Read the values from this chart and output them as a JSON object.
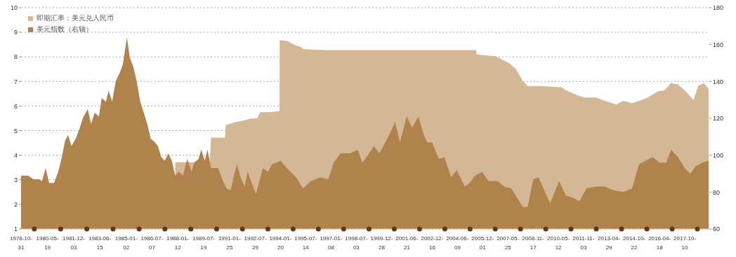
{
  "chart_data": {
    "type": "area",
    "xlim": [
      "1978-10-31",
      "2019-03-20"
    ],
    "xticks": [
      "1978-10-31",
      "1980-05-19",
      "1981-12-03",
      "1983-06-15",
      "1985-01-02",
      "1986-07-07",
      "1988-01-12",
      "1989-07-19",
      "1991-01-25",
      "1992-07-29",
      "1994-01-20",
      "1995-07-14",
      "1997-01-08",
      "1998-07-03",
      "1999-12-28",
      "2001-06-21",
      "2002-12-16",
      "2004-06-09",
      "2005-12-01",
      "2007-05-25",
      "2008-11-17",
      "2010-05-12",
      "2011-11-03",
      "2013-04-29",
      "2014-10-22",
      "2016-04-18",
      "2017-10-10"
    ],
    "ylim": [
      1,
      10
    ],
    "yticks": [
      1,
      2,
      3,
      4,
      5,
      6,
      7,
      8,
      9,
      10
    ],
    "y2lim": [
      60,
      180
    ],
    "y2ticks": [
      60,
      80,
      100,
      120,
      140,
      160,
      180
    ],
    "grid": "y",
    "legend": "top left",
    "series": [
      {
        "name": "即期汇率：美元兑人民币",
        "color": "#d4b896",
        "x": [
          "1987-11-17",
          "1989-11-24",
          "1989-12-23",
          "1990-10-20",
          "1990-11-03",
          "1991-05-18",
          "1991-10-15",
          "1992-04-27",
          "1992-09-10",
          "1992-11-10",
          "1993-06-08",
          "1993-12-20",
          "1993-12-31",
          "1994-01-03",
          "1994-06-13",
          "1994-11-06",
          "1995-04-01",
          "1995-05-16",
          "1995-11-08",
          "1996-11-09",
          "2005-06-21",
          "2005-07-20",
          "2005-07-22",
          "2006-04-09",
          "2006-09-02",
          "2007-06-22",
          "2007-11-15",
          "2008-04-11",
          "2008-07-22",
          "2009-05-11",
          "2010-07-23",
          "2010-10-19",
          "2011-06-24",
          "2011-11-17",
          "2012-07-24",
          "2013-01-31",
          "2013-10-06",
          "2014-03-03",
          "2014-09-09",
          "2015-02-02",
          "2015-08-10",
          "2016-03-03",
          "2016-07-27",
          "2016-12-20",
          "2017-05-16",
          "2017-10-09",
          "2018-04-16",
          "2018-07-27",
          "2018-11-20",
          "2019-03-04"
        ],
        "values": [
          3.71,
          3.71,
          4.72,
          4.72,
          5.22,
          5.34,
          5.39,
          5.49,
          5.5,
          5.75,
          5.75,
          5.8,
          5.8,
          8.68,
          8.65,
          8.5,
          8.4,
          8.32,
          8.3,
          8.28,
          8.28,
          8.28,
          8.1,
          8.05,
          8.03,
          7.74,
          7.5,
          7.02,
          6.81,
          6.81,
          6.76,
          6.64,
          6.44,
          6.35,
          6.35,
          6.21,
          6.06,
          6.21,
          6.11,
          6.21,
          6.35,
          6.59,
          6.64,
          6.93,
          6.88,
          6.64,
          6.25,
          6.83,
          6.93,
          6.71
        ]
      },
      {
        "name": "美元指数（右轴）",
        "color": "#b0834c",
        "axis": "y2",
        "x": [
          "1978-10-31",
          "1979-03-28",
          "1979-07-27",
          "1979-11-10",
          "1980-01-23",
          "1980-04-08",
          "1980-06-24",
          "1980-10-06",
          "1981-01-05",
          "1981-03-06",
          "1981-06-03",
          "1981-08-03",
          "1981-10-16",
          "1982-01-15",
          "1982-04-01",
          "1982-06-14",
          "1982-09-27",
          "1982-12-10",
          "1983-02-24",
          "1983-05-26",
          "1983-07-24",
          "1983-10-23",
          "1983-12-20",
          "1984-03-06",
          "1984-05-19",
          "1984-08-18",
          "1984-10-18",
          "1985-01-16",
          "1985-03-17",
          "1985-05-31",
          "1985-08-14",
          "1985-10-28",
          "1986-01-12",
          "1986-03-27",
          "1986-06-10",
          "1986-09-09",
          "1986-11-07",
          "1987-01-22",
          "1987-04-06",
          "1987-06-20",
          "1987-09-04",
          "1987-11-17",
          "1988-02-02",
          "1988-05-01",
          "1988-07-31",
          "1988-10-30",
          "1988-12-28",
          "1989-03-28",
          "1989-05-27",
          "1989-08-10",
          "1989-10-09",
          "1989-12-23",
          "1990-03-08",
          "1990-05-22",
          "1990-08-21",
          "1990-11-18",
          "1991-02-17",
          "1991-05-18",
          "1991-07-02",
          "1991-09-16",
          "1991-12-15",
          "1992-02-14",
          "1992-08-11",
          "1993-01-08",
          "1993-04-23",
          "1993-07-22",
          "1994-01-19",
          "1994-07-13",
          "1994-12-21",
          "1995-05-16",
          "1995-11-08",
          "1996-05-16",
          "1996-11-09",
          "1997-03-06",
          "1997-07-30",
          "1998-02-20",
          "1998-07-30",
          "1998-11-09",
          "1999-03-06",
          "1999-07-16",
          "1999-11-10",
          "2000-05-18",
          "2000-10-12",
          "2001-01-23",
          "2001-06-18",
          "2001-10-13",
          "2002-02-22",
          "2002-06-20",
          "2002-09-01",
          "2002-12-12",
          "2003-05-07",
          "2003-09-02",
          "2004-01-26",
          "2004-05-22",
          "2004-11-14",
          "2005-02-24",
          "2005-06-21",
          "2005-11-14",
          "2006-04-09",
          "2006-10-16",
          "2007-03-11",
          "2007-08-04",
          "2007-12-28",
          "2008-04-11",
          "2008-07-22",
          "2008-11-17",
          "2009-03-14",
          "2009-06-24",
          "2009-11-17",
          "2010-05-26",
          "2010-10-19",
          "2011-03-14",
          "2011-08-07",
          "2012-01-01",
          "2012-07-24",
          "2013-01-31",
          "2013-08-08",
          "2014-03-03",
          "2014-09-09",
          "2015-02-02",
          "2015-06-27",
          "2015-11-20",
          "2016-04-15",
          "2016-09-09",
          "2016-12-20",
          "2017-05-16",
          "2017-10-09",
          "2018-02-03",
          "2018-05-30",
          "2018-10-23",
          "2019-03-04"
        ],
        "values": [
          89,
          89,
          87,
          87,
          86,
          93,
          85,
          85,
          91,
          97,
          108,
          111,
          105,
          109,
          114,
          120,
          125,
          117,
          123,
          121,
          131,
          129,
          135,
          129,
          140,
          145,
          149,
          164,
          153,
          148,
          140,
          129,
          123,
          117,
          109,
          107,
          105,
          99,
          97,
          101,
          97,
          89,
          91,
          89,
          98,
          91,
          96,
          98,
          103,
          97,
          103,
          93,
          93,
          93,
          87,
          82,
          81,
          91,
          95,
          88,
          83,
          91,
          79,
          93,
          91,
          95,
          97,
          92,
          88,
          82,
          86,
          88,
          87,
          96,
          101,
          101,
          103,
          96,
          100,
          105,
          101,
          110,
          118,
          107,
          121,
          115,
          121,
          111,
          107,
          107,
          98,
          99,
          88,
          92,
          83,
          85,
          89,
          91,
          86,
          86,
          83,
          82,
          76,
          72,
          72,
          87,
          88,
          82,
          74,
          86,
          78,
          77,
          75,
          82,
          83,
          83,
          81,
          80,
          82,
          95,
          97,
          99,
          96,
          96,
          103,
          99,
          93,
          90,
          94,
          96,
          97
        ]
      }
    ]
  }
}
